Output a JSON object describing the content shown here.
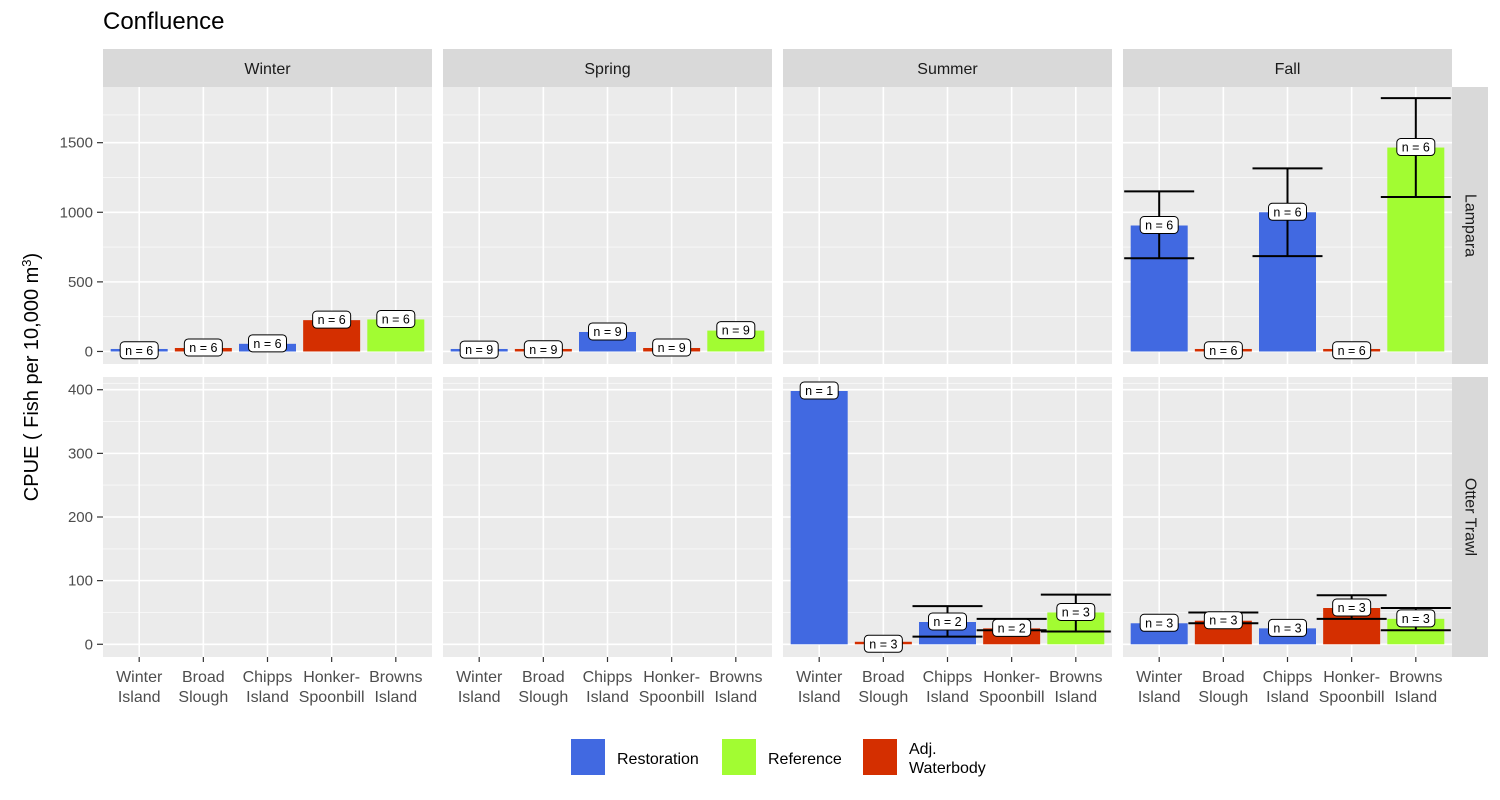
{
  "title": "Confluence",
  "chart_data": {
    "type": "bar",
    "title": "Confluence",
    "ylabel": "CPUE ( Fish per 10,000 m3)",
    "xlabel": "",
    "categories": [
      "Winter\nIsland",
      "Broad\nSlough",
      "Chipps\nIsland",
      "Honker-\nSpoonbill",
      "Browns\nIsland"
    ],
    "category_groups": [
      "Restoration",
      "Adj. Waterbody",
      "Restoration",
      "Adj. Waterbody",
      "Reference"
    ],
    "columns": [
      "Winter",
      "Spring",
      "Summer",
      "Fall"
    ],
    "rows": [
      {
        "label": "Lampara",
        "ylim": [
          -90,
          1900
        ],
        "yticks": [
          0,
          500,
          1000,
          1500
        ],
        "panels": [
          {
            "values": [
              5,
              25,
              55,
              225,
              230
            ],
            "errors": [
              null,
              null,
              null,
              null,
              null
            ],
            "n": [
              6,
              6,
              6,
              6,
              6
            ]
          },
          {
            "values": [
              10,
              12,
              140,
              25,
              150
            ],
            "errors": [
              null,
              null,
              null,
              null,
              null
            ],
            "n": [
              9,
              9,
              9,
              9,
              9
            ]
          },
          {
            "values": [
              null,
              null,
              null,
              null,
              null
            ],
            "errors": [
              null,
              null,
              null,
              null,
              null
            ],
            "n": [
              null,
              null,
              null,
              null,
              null
            ]
          },
          {
            "values": [
              905,
              5,
              1000,
              5,
              1465
            ],
            "errors": [
              [
                670,
                1150
              ],
              null,
              [
                685,
                1315
              ],
              null,
              [
                1110,
                1820
              ]
            ],
            "n": [
              6,
              6,
              6,
              6,
              6
            ]
          }
        ]
      },
      {
        "label": "Otter Trawl",
        "ylim": [
          -20,
          420
        ],
        "yticks": [
          0,
          100,
          200,
          300,
          400
        ],
        "panels": [
          {
            "values": [
              null,
              null,
              null,
              null,
              null
            ],
            "errors": [
              null,
              null,
              null,
              null,
              null
            ],
            "n": [
              null,
              null,
              null,
              null,
              null
            ]
          },
          {
            "values": [
              null,
              null,
              null,
              null,
              null
            ],
            "errors": [
              null,
              null,
              null,
              null,
              null
            ],
            "n": [
              null,
              null,
              null,
              null,
              null
            ]
          },
          {
            "values": [
              398,
              0,
              35,
              25,
              50
            ],
            "errors": [
              null,
              null,
              [
                12,
                60
              ],
              [
                22,
                40
              ],
              [
                20,
                78
              ]
            ],
            "n": [
              1,
              3,
              2,
              2,
              3
            ]
          },
          {
            "values": [
              33,
              37,
              25,
              57,
              40
            ],
            "errors": [
              null,
              [
                33,
                50
              ],
              null,
              [
                40,
                77
              ],
              [
                22,
                57
              ]
            ],
            "n": [
              3,
              3,
              3,
              3,
              3
            ]
          }
        ]
      }
    ],
    "legend": {
      "position": "bottom",
      "entries": [
        {
          "name": "Restoration",
          "color": "#4169E1"
        },
        {
          "name": "Reference",
          "color": "#A2FC32"
        },
        {
          "name": "Adj.\nWaterbody",
          "color": "#D42F00"
        }
      ]
    },
    "n_label_prefix": "n = "
  }
}
